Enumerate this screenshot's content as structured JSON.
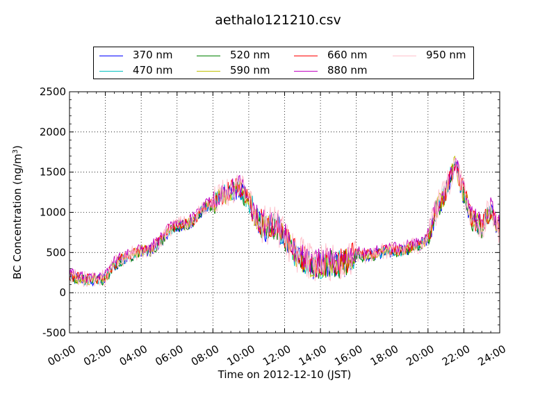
{
  "chart_data": {
    "type": "line",
    "title": "aethalo121210.csv",
    "xlabel": "Time on 2012-12-10 (JST)",
    "ylabel": "BC Concentration (ng/m",
    "ylabel_sup": "3",
    "ylabel_close": ")",
    "xlim": [
      "00:00",
      "24:00"
    ],
    "ylim": [
      -500,
      2500
    ],
    "x_ticks": [
      "00:00",
      "02:00",
      "04:00",
      "06:00",
      "08:00",
      "10:00",
      "12:00",
      "14:00",
      "16:00",
      "18:00",
      "20:00",
      "22:00",
      "24:00"
    ],
    "y_ticks": [
      "2500",
      "2000",
      "1500",
      "1000",
      "500",
      "0",
      "-500"
    ],
    "grid": true,
    "legend_position": "top-center",
    "legend_columns": 4,
    "x_hours": [
      0,
      0.5,
      1,
      1.5,
      2,
      2.5,
      3,
      3.5,
      4,
      4.5,
      5,
      5.5,
      6,
      6.5,
      7,
      7.5,
      8,
      8.5,
      9,
      9.5,
      10,
      10.5,
      11,
      11.5,
      12,
      12.5,
      13,
      13.5,
      14,
      14.5,
      15,
      15.5,
      16,
      16.5,
      17,
      17.5,
      18,
      18.5,
      19,
      19.5,
      20,
      20.5,
      21,
      21.5,
      22,
      22.5,
      23,
      23.5,
      24
    ],
    "base_values": [
      200,
      170,
      160,
      170,
      170,
      350,
      420,
      470,
      520,
      530,
      620,
      760,
      830,
      860,
      900,
      1060,
      1100,
      1200,
      1260,
      1300,
      1130,
      900,
      800,
      850,
      700,
      500,
      420,
      350,
      340,
      380,
      360,
      380,
      480,
      450,
      480,
      510,
      520,
      520,
      560,
      580,
      680,
      1050,
      1250,
      1600,
      1220,
      900,
      820,
      1020,
      780
    ],
    "series": [
      {
        "name": "370 nm",
        "color": "#0000ff",
        "offset": -10
      },
      {
        "name": "470 nm",
        "color": "#00bfbf",
        "offset": 0
      },
      {
        "name": "520 nm",
        "color": "#008000",
        "offset": -15
      },
      {
        "name": "590 nm",
        "color": "#bfbf00",
        "offset": 5
      },
      {
        "name": "660 nm",
        "color": "#ff0000",
        "offset": 15
      },
      {
        "name": "880 nm",
        "color": "#bf00bf",
        "offset": 40
      },
      {
        "name": "950 nm",
        "color": "#ffc0cb",
        "offset": 10
      }
    ]
  }
}
